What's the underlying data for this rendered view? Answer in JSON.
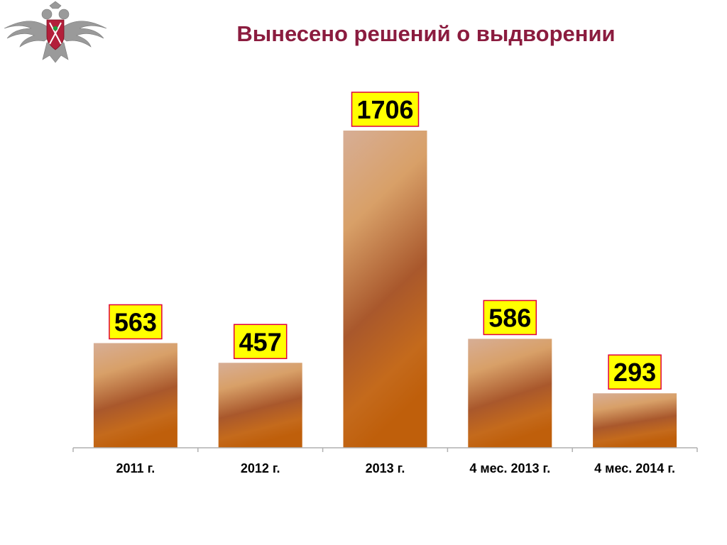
{
  "slide": {
    "title": "Вынесено решений о выдворении"
  },
  "emblem": {
    "icon": "double-headed-eagle-emblem-icon"
  },
  "colors": {
    "title": "#8b1c3f",
    "bar_light": "#d9b090",
    "bar_dark": "#a8562a",
    "bar_base": "#c0620f",
    "label_box_fill": "#ffff00",
    "label_box_border": "#e0003c",
    "axis": "#b0b0b0"
  },
  "chart_data": {
    "type": "bar",
    "title": "Вынесено решений о выдворении",
    "categories": [
      "2011 г.",
      "2012 г.",
      "2013 г.",
      "4 мес. 2013 г.",
      "4 мес. 2014 г."
    ],
    "values": [
      563,
      457,
      1706,
      586,
      293
    ],
    "data_labels": [
      "563",
      "457",
      "1706",
      "586",
      "293"
    ],
    "xlabel": "",
    "ylabel": "",
    "ylim": [
      0,
      1706
    ],
    "grid": false,
    "legend": "none"
  }
}
